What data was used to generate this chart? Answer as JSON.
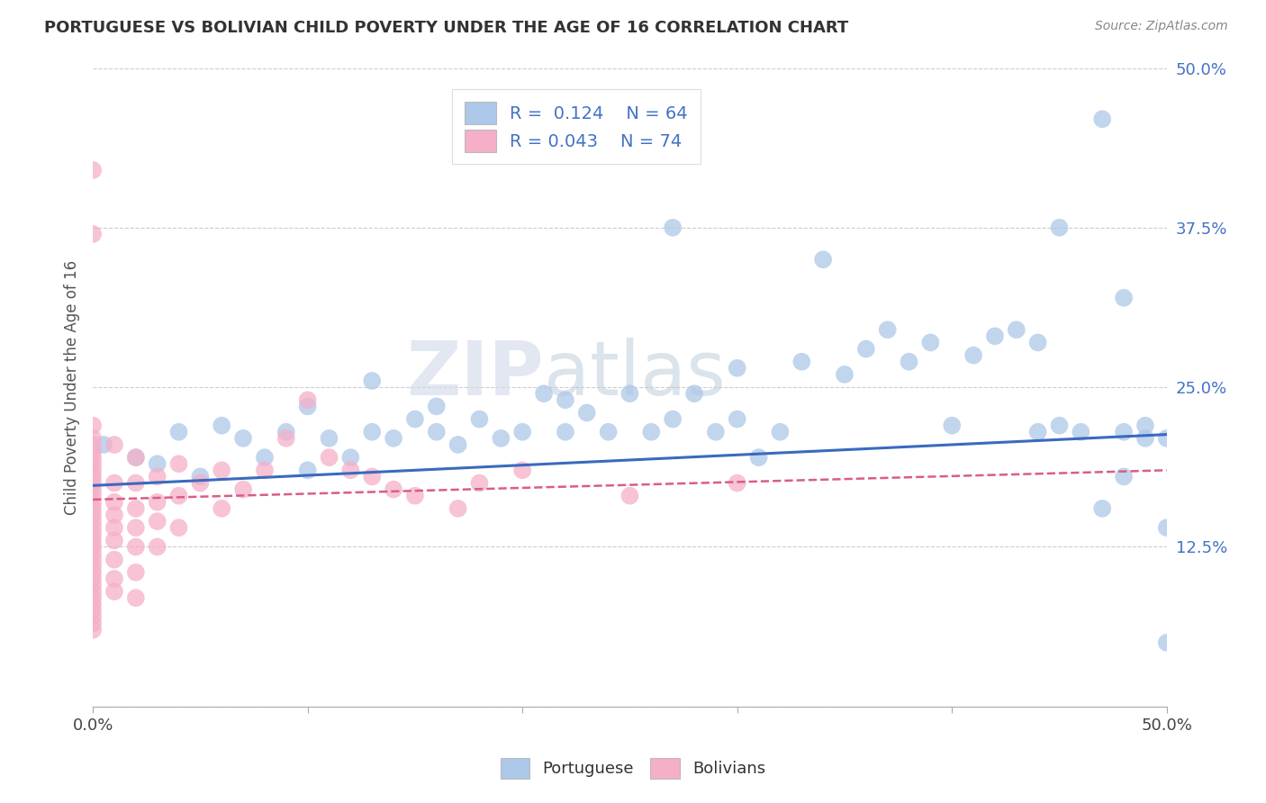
{
  "title": "PORTUGUESE VS BOLIVIAN CHILD POVERTY UNDER THE AGE OF 16 CORRELATION CHART",
  "source": "Source: ZipAtlas.com",
  "ylabel": "Child Poverty Under the Age of 16",
  "xlim": [
    0.0,
    0.5
  ],
  "ylim": [
    0.0,
    0.5
  ],
  "xticks": [
    0.0,
    0.1,
    0.2,
    0.3,
    0.4,
    0.5
  ],
  "yticks": [
    0.0,
    0.125,
    0.25,
    0.375,
    0.5
  ],
  "xtick_labels": [
    "0.0%",
    "",
    "",
    "",
    "",
    "50.0%"
  ],
  "ytick_labels": [
    "",
    "12.5%",
    "25.0%",
    "37.5%",
    "50.0%"
  ],
  "blue_color": "#adc8e8",
  "pink_color": "#f5afc8",
  "line_blue": "#3a6abf",
  "line_pink": "#d95f80",
  "r_blue": 0.124,
  "n_blue": 64,
  "r_pink": 0.043,
  "n_pink": 74,
  "watermark_zip": "ZIP",
  "watermark_atlas": "atlas",
  "grid_color": "#c8c8c8",
  "background_color": "#ffffff",
  "portuguese_data": [
    [
      0.005,
      0.205
    ],
    [
      0.02,
      0.195
    ],
    [
      0.03,
      0.19
    ],
    [
      0.04,
      0.215
    ],
    [
      0.05,
      0.18
    ],
    [
      0.06,
      0.22
    ],
    [
      0.07,
      0.21
    ],
    [
      0.08,
      0.195
    ],
    [
      0.09,
      0.215
    ],
    [
      0.1,
      0.185
    ],
    [
      0.1,
      0.235
    ],
    [
      0.11,
      0.21
    ],
    [
      0.12,
      0.195
    ],
    [
      0.13,
      0.215
    ],
    [
      0.13,
      0.255
    ],
    [
      0.14,
      0.21
    ],
    [
      0.15,
      0.225
    ],
    [
      0.16,
      0.215
    ],
    [
      0.16,
      0.235
    ],
    [
      0.17,
      0.205
    ],
    [
      0.18,
      0.225
    ],
    [
      0.19,
      0.21
    ],
    [
      0.2,
      0.215
    ],
    [
      0.21,
      0.245
    ],
    [
      0.22,
      0.24
    ],
    [
      0.22,
      0.215
    ],
    [
      0.23,
      0.23
    ],
    [
      0.24,
      0.215
    ],
    [
      0.25,
      0.245
    ],
    [
      0.26,
      0.215
    ],
    [
      0.27,
      0.225
    ],
    [
      0.27,
      0.375
    ],
    [
      0.28,
      0.245
    ],
    [
      0.29,
      0.215
    ],
    [
      0.3,
      0.265
    ],
    [
      0.3,
      0.225
    ],
    [
      0.31,
      0.195
    ],
    [
      0.32,
      0.215
    ],
    [
      0.33,
      0.27
    ],
    [
      0.34,
      0.35
    ],
    [
      0.35,
      0.26
    ],
    [
      0.36,
      0.28
    ],
    [
      0.37,
      0.295
    ],
    [
      0.38,
      0.27
    ],
    [
      0.39,
      0.285
    ],
    [
      0.4,
      0.22
    ],
    [
      0.41,
      0.275
    ],
    [
      0.42,
      0.29
    ],
    [
      0.43,
      0.295
    ],
    [
      0.44,
      0.215
    ],
    [
      0.44,
      0.285
    ],
    [
      0.45,
      0.375
    ],
    [
      0.45,
      0.22
    ],
    [
      0.46,
      0.215
    ],
    [
      0.47,
      0.155
    ],
    [
      0.47,
      0.46
    ],
    [
      0.48,
      0.215
    ],
    [
      0.48,
      0.32
    ],
    [
      0.48,
      0.18
    ],
    [
      0.49,
      0.22
    ],
    [
      0.49,
      0.21
    ],
    [
      0.5,
      0.21
    ],
    [
      0.5,
      0.05
    ],
    [
      0.5,
      0.14
    ]
  ],
  "bolivian_data": [
    [
      0.0,
      0.42
    ],
    [
      0.0,
      0.37
    ],
    [
      0.0,
      0.22
    ],
    [
      0.0,
      0.21
    ],
    [
      0.0,
      0.205
    ],
    [
      0.0,
      0.2
    ],
    [
      0.0,
      0.195
    ],
    [
      0.0,
      0.19
    ],
    [
      0.0,
      0.185
    ],
    [
      0.0,
      0.18
    ],
    [
      0.0,
      0.175
    ],
    [
      0.0,
      0.17
    ],
    [
      0.0,
      0.165
    ],
    [
      0.0,
      0.16
    ],
    [
      0.0,
      0.155
    ],
    [
      0.0,
      0.15
    ],
    [
      0.0,
      0.145
    ],
    [
      0.0,
      0.14
    ],
    [
      0.0,
      0.135
    ],
    [
      0.0,
      0.13
    ],
    [
      0.0,
      0.125
    ],
    [
      0.0,
      0.12
    ],
    [
      0.0,
      0.115
    ],
    [
      0.0,
      0.11
    ],
    [
      0.0,
      0.105
    ],
    [
      0.0,
      0.1
    ],
    [
      0.0,
      0.095
    ],
    [
      0.0,
      0.09
    ],
    [
      0.0,
      0.085
    ],
    [
      0.0,
      0.08
    ],
    [
      0.0,
      0.075
    ],
    [
      0.0,
      0.07
    ],
    [
      0.0,
      0.065
    ],
    [
      0.0,
      0.06
    ],
    [
      0.01,
      0.205
    ],
    [
      0.01,
      0.175
    ],
    [
      0.01,
      0.16
    ],
    [
      0.01,
      0.15
    ],
    [
      0.01,
      0.14
    ],
    [
      0.01,
      0.13
    ],
    [
      0.01,
      0.115
    ],
    [
      0.01,
      0.1
    ],
    [
      0.01,
      0.09
    ],
    [
      0.02,
      0.195
    ],
    [
      0.02,
      0.175
    ],
    [
      0.02,
      0.155
    ],
    [
      0.02,
      0.14
    ],
    [
      0.02,
      0.125
    ],
    [
      0.02,
      0.105
    ],
    [
      0.02,
      0.085
    ],
    [
      0.03,
      0.18
    ],
    [
      0.03,
      0.16
    ],
    [
      0.03,
      0.145
    ],
    [
      0.03,
      0.125
    ],
    [
      0.04,
      0.19
    ],
    [
      0.04,
      0.165
    ],
    [
      0.04,
      0.14
    ],
    [
      0.05,
      0.175
    ],
    [
      0.06,
      0.185
    ],
    [
      0.06,
      0.155
    ],
    [
      0.07,
      0.17
    ],
    [
      0.08,
      0.185
    ],
    [
      0.09,
      0.21
    ],
    [
      0.1,
      0.24
    ],
    [
      0.11,
      0.195
    ],
    [
      0.12,
      0.185
    ],
    [
      0.13,
      0.18
    ],
    [
      0.14,
      0.17
    ],
    [
      0.15,
      0.165
    ],
    [
      0.17,
      0.155
    ],
    [
      0.18,
      0.175
    ],
    [
      0.2,
      0.185
    ],
    [
      0.25,
      0.165
    ],
    [
      0.3,
      0.175
    ]
  ]
}
